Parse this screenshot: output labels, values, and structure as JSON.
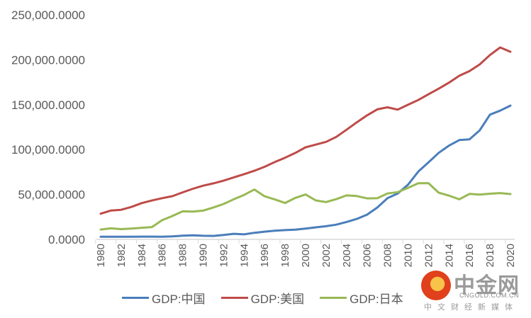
{
  "chart_data": {
    "type": "line",
    "title": "",
    "xlabel": "",
    "ylabel": "",
    "ylim": [
      0,
      250000
    ],
    "yticks": [
      0,
      50000,
      100000,
      150000,
      200000,
      250000
    ],
    "ytick_labels": [
      "0.0000",
      "50,000.0000",
      "100,000.0000",
      "150,000.0000",
      "200,000.0000",
      "250,000.0000"
    ],
    "x": [
      1980,
      1981,
      1982,
      1983,
      1984,
      1985,
      1986,
      1987,
      1988,
      1989,
      1990,
      1991,
      1992,
      1993,
      1994,
      1995,
      1996,
      1997,
      1998,
      1999,
      2000,
      2001,
      2002,
      2003,
      2004,
      2005,
      2006,
      2007,
      2008,
      2009,
      2010,
      2011,
      2012,
      2013,
      2014,
      2015,
      2016,
      2017,
      2018,
      2019,
      2020
    ],
    "xtick_labels": [
      "1980",
      "1982",
      "1984",
      "1986",
      "1988",
      "1990",
      "1992",
      "1994",
      "1996",
      "1998",
      "2000",
      "2002",
      "2004",
      "2006",
      "2008",
      "2010",
      "2012",
      "2014",
      "2016",
      "2018",
      "2020"
    ],
    "grid": false,
    "legend_position": "bottom",
    "series": [
      {
        "name": "GDP:中国",
        "color": "#4a7ebb",
        "values": [
          3000,
          3000,
          3000,
          3000,
          3100,
          3100,
          3000,
          3300,
          4100,
          4600,
          4000,
          3900,
          4900,
          6200,
          5600,
          7300,
          8600,
          9600,
          10300,
          10900,
          12100,
          13400,
          14700,
          16400,
          19400,
          22800,
          27500,
          35500,
          45900,
          51100,
          60900,
          75500,
          85700,
          96400,
          104400,
          110600,
          111400,
          121400,
          138900,
          143400,
          149000
        ]
      },
      {
        "name": "GDP:美国",
        "color": "#be4b48",
        "values": [
          28600,
          32100,
          33000,
          36100,
          40400,
          43300,
          45900,
          48100,
          52400,
          56400,
          59800,
          62400,
          65400,
          69100,
          72600,
          76400,
          80800,
          86100,
          90900,
          96300,
          102500,
          105500,
          108600,
          114100,
          122100,
          130400,
          138100,
          144800,
          147100,
          144500,
          149900,
          155200,
          161600,
          167800,
          174500,
          182200,
          187400,
          194800,
          205300,
          213700,
          208900
        ]
      },
      {
        "name": "GDP:日本",
        "color": "#98b954",
        "values": [
          11000,
          12300,
          11400,
          12100,
          12900,
          13700,
          21400,
          26000,
          31200,
          30900,
          32000,
          35600,
          39400,
          44700,
          49500,
          55500,
          48000,
          44500,
          40500,
          46200,
          50000,
          43400,
          41600,
          44800,
          49000,
          48300,
          45700,
          45800,
          51100,
          52600,
          57300,
          62500,
          62600,
          52000,
          48700,
          44600,
          50600,
          49900,
          50900,
          51600,
          50500
        ]
      }
    ]
  },
  "watermark": {
    "title": "中金网",
    "url": "CNGOLD.COM.CN",
    "subtitle": "中文财经新媒体"
  }
}
